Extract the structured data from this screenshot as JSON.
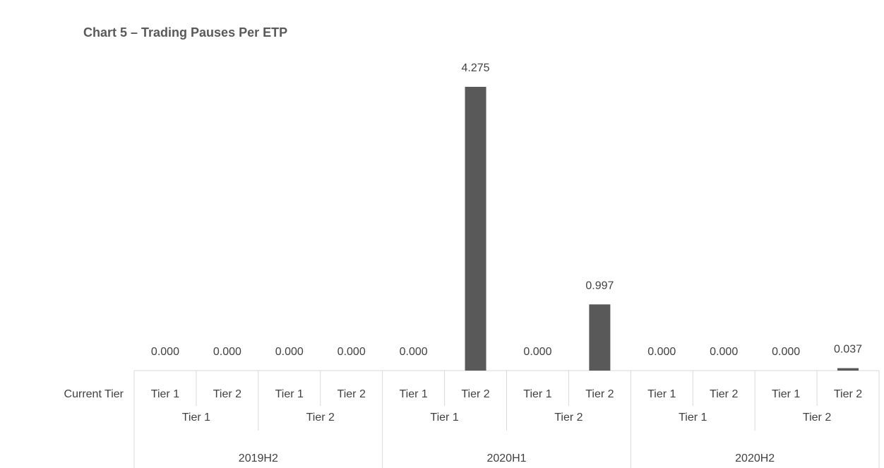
{
  "chart_data": {
    "type": "bar",
    "title": "Chart 5 – Trading Pauses Per ETP",
    "x_label": "Current Tier",
    "categories": [
      "Tier 1",
      "Tier 2",
      "Tier 1",
      "Tier 2",
      "Tier 1",
      "Tier 2",
      "Tier 1",
      "Tier 2",
      "Tier 1",
      "Tier 2",
      "Tier 1",
      "Tier 2"
    ],
    "category_groups": [
      "Tier 1",
      "Tier 2",
      "Tier 1",
      "Tier 2",
      "Tier 1",
      "Tier 2"
    ],
    "periods": [
      "2019H2",
      "2020H1",
      "2020H2"
    ],
    "values": [
      0,
      0,
      0,
      0,
      0,
      4.275,
      0,
      0.997,
      0,
      0,
      0,
      0.037
    ],
    "value_labels": [
      "0.000",
      "0.000",
      "0.000",
      "0.000",
      "0.000",
      "4.275",
      "0.000",
      "0.997",
      "0.000",
      "0.000",
      "0.000",
      "0.037"
    ],
    "color": "#595959"
  }
}
